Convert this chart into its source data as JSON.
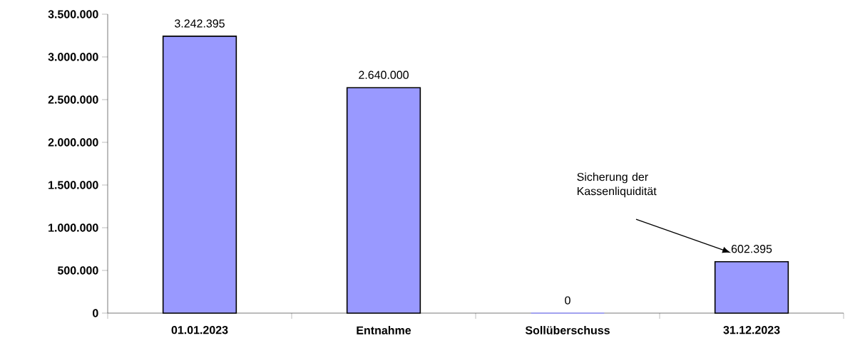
{
  "chart_data": {
    "type": "bar",
    "categories": [
      "01.01.2023",
      "Entnahme",
      "Sollüberschuss",
      "31.12.2023"
    ],
    "values": [
      3242395,
      2640000,
      0,
      602395
    ],
    "value_labels": [
      "3.242.395",
      "2.640.000",
      "0",
      "602.395"
    ],
    "color": "#9999ff",
    "ylim": [
      0,
      3500000
    ],
    "yticks": [
      {
        "value": 0,
        "label": "0"
      },
      {
        "value": 500000,
        "label": "500.000"
      },
      {
        "value": 1000000,
        "label": "1.000.000"
      },
      {
        "value": 1500000,
        "label": "1.500.000"
      },
      {
        "value": 2000000,
        "label": "2.000.000"
      },
      {
        "value": 2500000,
        "label": "2.500.000"
      },
      {
        "value": 3000000,
        "label": "3.000.000"
      },
      {
        "value": 3500000,
        "label": "3.500.000"
      }
    ],
    "annotations": [
      "Sicherung der Kassenliquidität"
    ],
    "grid": false
  }
}
